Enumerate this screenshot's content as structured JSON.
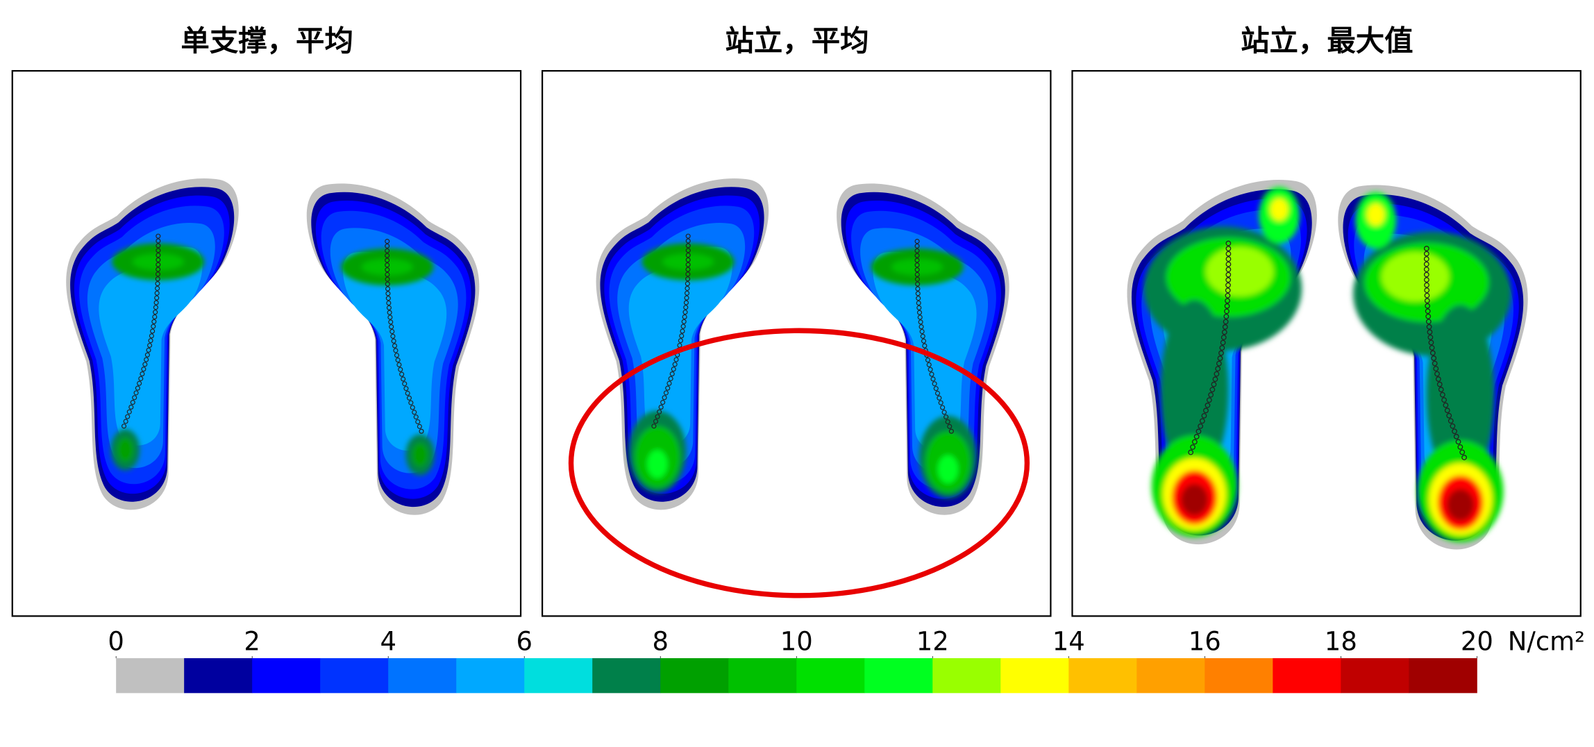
{
  "chart_data": {
    "type": "heatmap",
    "panels": [
      {
        "title": "单支撑，平均"
      },
      {
        "title": "站立，平均"
      },
      {
        "title": "站立，最大值"
      }
    ],
    "colorbar": {
      "lim": [
        0,
        20
      ],
      "ticks": [
        0,
        2,
        4,
        6,
        8,
        10,
        12,
        14,
        16,
        18,
        20
      ],
      "unit": "N/cm²",
      "colors": [
        "#c0c0c0",
        "#00009f",
        "#0000ff",
        "#0033ff",
        "#0073ff",
        "#00a8ff",
        "#00dede",
        "#00804a",
        "#00a000",
        "#00c000",
        "#00e000",
        "#00ff20",
        "#99ff00",
        "#ffff00",
        "#ffc000",
        "#ffa000",
        "#ff8000",
        "#ff0000",
        "#c00000",
        "#a00000"
      ]
    }
  }
}
